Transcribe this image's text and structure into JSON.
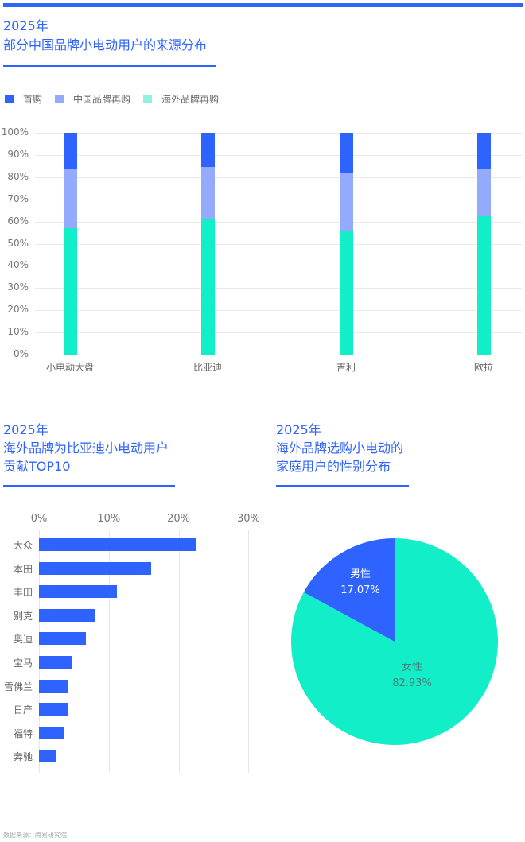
{
  "colors": {
    "accent": "#2f63ff",
    "first_purchase": "#2f63ff",
    "china_rebuy": "#94aafc",
    "overseas_rebuy": "#12efc8",
    "male": "#2f63ff",
    "female": "#12efc8"
  },
  "section1": {
    "year": "2025年",
    "title": "部分中国品牌小电动用户的来源分布"
  },
  "section2": {
    "year": "2025年",
    "title_line1": "海外品牌为比亚迪小电动用户",
    "title_line2": "贡献TOP10"
  },
  "section3": {
    "year": "2025年",
    "title_line1": "海外品牌选购小电动的",
    "title_line2": "家庭用户的性别分布"
  },
  "footer": "数据来源：腾易研究院",
  "chart_data": [
    {
      "type": "bar",
      "stacked": true,
      "title": "2025年 部分中国品牌小电动用户的来源分布",
      "categories": [
        "小电动大盘",
        "比亚迪",
        "吉利",
        "欧拉"
      ],
      "series": [
        {
          "name": "首购",
          "color": "#2f63ff",
          "values": [
            16.5,
            15.5,
            18.0,
            16.5
          ]
        },
        {
          "name": "中国品牌再购",
          "color": "#94aafc",
          "values": [
            26.5,
            23.5,
            26.5,
            21.0
          ]
        },
        {
          "name": "海外品牌再购",
          "color": "#12efc8",
          "values": [
            57.0,
            61.0,
            55.5,
            62.5
          ]
        }
      ],
      "legend": [
        "首购",
        "中国品牌再购",
        "海外品牌再购"
      ],
      "legend_position": "top-left",
      "yticks": [
        "0%",
        "10%",
        "20%",
        "30%",
        "40%",
        "50%",
        "60%",
        "70%",
        "80%",
        "90%",
        "100%"
      ],
      "ylim": [
        0,
        100
      ],
      "xlabel": "",
      "ylabel": "",
      "grid": true
    },
    {
      "type": "bar",
      "orientation": "horizontal",
      "title": "2025年 海外品牌为比亚迪小电动用户贡献TOP10",
      "categories": [
        "大众",
        "本田",
        "丰田",
        "别克",
        "奥迪",
        "宝马",
        "雪佛兰",
        "日产",
        "福特",
        "奔驰"
      ],
      "values": [
        22.6,
        16.1,
        11.2,
        8.0,
        6.7,
        4.7,
        4.2,
        4.1,
        3.7,
        2.5
      ],
      "xticks": [
        "0%",
        "10%",
        "20%",
        "30%"
      ],
      "xlim": [
        0,
        30
      ],
      "grid": true
    },
    {
      "type": "pie",
      "title": "2025年 海外品牌选购小电动的家庭用户的性别分布",
      "labels": [
        "男性",
        "女性"
      ],
      "values": [
        17.07,
        82.93
      ],
      "value_labels": [
        "17.07%",
        "82.93%"
      ],
      "colors": [
        "#2f63ff",
        "#12efc8"
      ]
    }
  ]
}
